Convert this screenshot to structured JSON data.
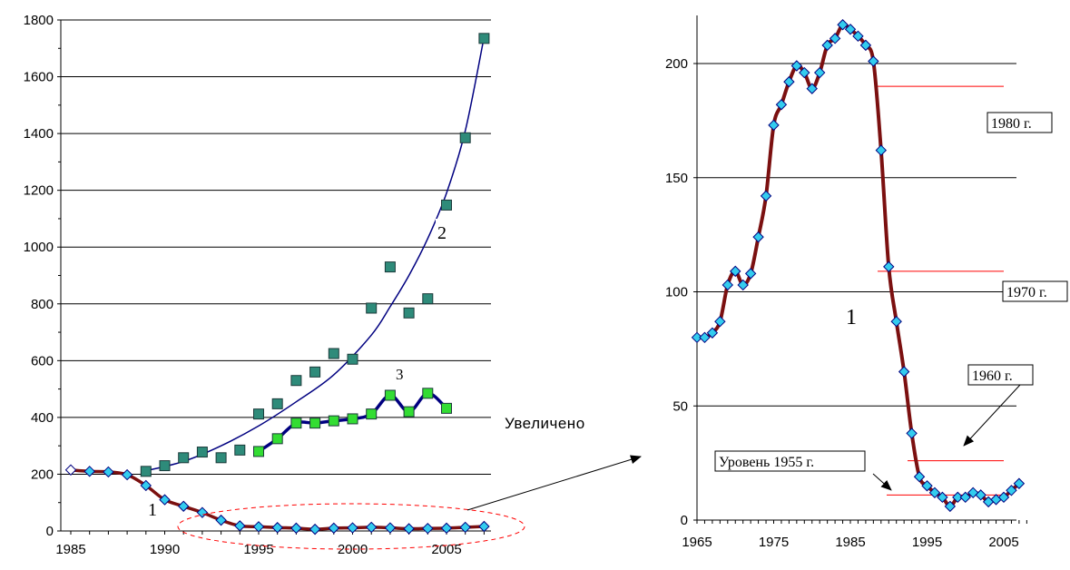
{
  "chart_data": [
    {
      "type": "line",
      "x_ticks": [
        1985,
        1990,
        1995,
        2000,
        2005
      ],
      "y_ticks": [
        0,
        200,
        400,
        600,
        800,
        1000,
        1200,
        1400,
        1600,
        1800
      ],
      "xlim": [
        1985,
        2007
      ],
      "ylim": [
        0,
        1800
      ],
      "grid": "horizontal",
      "series": [
        {
          "name": "2",
          "color": "#2E8B7A",
          "marker": "square",
          "trend_color": "#000080",
          "points": [
            [
              1989,
              210
            ],
            [
              1990,
              230
            ],
            [
              1991,
              258
            ],
            [
              1992,
              278
            ],
            [
              1993,
              258
            ],
            [
              1994,
              285
            ],
            [
              1995,
              412
            ],
            [
              1996,
              448
            ],
            [
              1997,
              530
            ],
            [
              1998,
              560
            ],
            [
              1999,
              625
            ],
            [
              2000,
              605
            ],
            [
              2001,
              785
            ],
            [
              2002,
              930
            ],
            [
              2003,
              768
            ],
            [
              2004,
              818
            ],
            [
              2005,
              1148
            ],
            [
              2006,
              1385
            ],
            [
              2007,
              1735
            ]
          ],
          "trend": [
            [
              1989,
              212
            ],
            [
              1991,
              245
            ],
            [
              1993,
              300
            ],
            [
              1995,
              370
            ],
            [
              1997,
              455
            ],
            [
              1999,
              550
            ],
            [
              2001,
              690
            ],
            [
              2002,
              790
            ],
            [
              2003,
              900
            ],
            [
              2004,
              1030
            ],
            [
              2005,
              1190
            ],
            [
              2006,
              1410
            ],
            [
              2007,
              1740
            ]
          ]
        },
        {
          "name": "3",
          "color": "#33DD33",
          "marker": "square",
          "line_color": "#000080",
          "points": [
            [
              1995,
              280
            ],
            [
              1996,
              325
            ],
            [
              1997,
              380
            ],
            [
              1998,
              380
            ],
            [
              1999,
              388
            ],
            [
              2000,
              395
            ],
            [
              2001,
              412
            ],
            [
              2002,
              478
            ],
            [
              2003,
              420
            ],
            [
              2004,
              485
            ],
            [
              2005,
              432
            ]
          ]
        },
        {
          "name": "1",
          "color": "#33CCEE",
          "marker": "diamond",
          "line_color": "#7B1010",
          "points": [
            [
              1985,
              215
            ],
            [
              1986,
              210
            ],
            [
              1987,
              208
            ],
            [
              1988,
              198
            ],
            [
              1989,
              160
            ],
            [
              1990,
              110
            ],
            [
              1991,
              87
            ],
            [
              1992,
              65
            ],
            [
              1993,
              38
            ],
            [
              1994,
              18
            ],
            [
              1995,
              15
            ],
            [
              1996,
              12
            ],
            [
              1997,
              10
            ],
            [
              1998,
              6
            ],
            [
              1999,
              10
            ],
            [
              2000,
              11
            ],
            [
              2001,
              13
            ],
            [
              2002,
              11
            ],
            [
              2003,
              8
            ],
            [
              2004,
              9
            ],
            [
              2005,
              10
            ],
            [
              2006,
              13
            ],
            [
              2007,
              16
            ]
          ]
        }
      ],
      "labels": [
        "1",
        "2",
        "3"
      ]
    },
    {
      "type": "line",
      "x_ticks": [
        1965,
        1975,
        1985,
        1995,
        2005
      ],
      "y_ticks": [
        0,
        50,
        100,
        150,
        200
      ],
      "xlim": [
        1965,
        2008
      ],
      "ylim": [
        0,
        220
      ],
      "grid": "horizontal",
      "series": [
        {
          "name": "1",
          "color": "#33CCEE",
          "marker": "diamond",
          "line_color": "#7B1010",
          "points": [
            [
              1965,
              80
            ],
            [
              1966,
              80
            ],
            [
              1967,
              82
            ],
            [
              1968,
              87
            ],
            [
              1969,
              103
            ],
            [
              1970,
              109
            ],
            [
              1971,
              103
            ],
            [
              1972,
              108
            ],
            [
              1973,
              124
            ],
            [
              1974,
              142
            ],
            [
              1975,
              173
            ],
            [
              1976,
              182
            ],
            [
              1977,
              192
            ],
            [
              1978,
              199
            ],
            [
              1979,
              196
            ],
            [
              1980,
              189
            ],
            [
              1981,
              196
            ],
            [
              1982,
              208
            ],
            [
              1983,
              211
            ],
            [
              1984,
              217
            ],
            [
              1985,
              215
            ],
            [
              1986,
              212
            ],
            [
              1987,
              208
            ],
            [
              1988,
              201
            ],
            [
              1989,
              162
            ],
            [
              1990,
              111
            ],
            [
              1991,
              87
            ],
            [
              1992,
              65
            ],
            [
              1993,
              38
            ],
            [
              1994,
              19
            ],
            [
              1995,
              15
            ],
            [
              1996,
              12
            ],
            [
              1997,
              10
            ],
            [
              1998,
              6
            ],
            [
              1999,
              10
            ],
            [
              2000,
              10
            ],
            [
              2001,
              12
            ],
            [
              2002,
              11
            ],
            [
              2003,
              8
            ],
            [
              2004,
              9
            ],
            [
              2005,
              10
            ],
            [
              2006,
              13
            ],
            [
              2007,
              16
            ]
          ]
        }
      ],
      "reference_levels": [
        {
          "label": "1980 г.",
          "value": 190,
          "color": "#FF0000"
        },
        {
          "label": "1970 г.",
          "value": 109,
          "color": "#FF0000"
        },
        {
          "label": "1960 г.",
          "value": 26,
          "color": "#FF0000"
        },
        {
          "label": "Уровень 1955 г.",
          "value": 11,
          "color": "#FF0000"
        }
      ],
      "labels": [
        "1"
      ]
    }
  ],
  "annotation": "Увеличено"
}
